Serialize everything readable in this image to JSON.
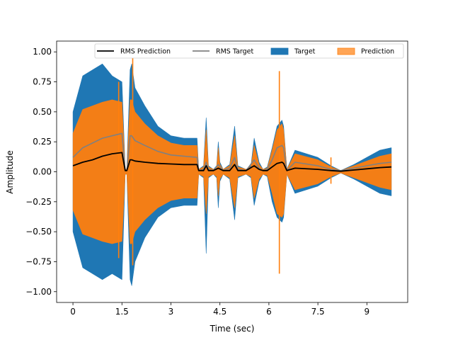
{
  "chart_data": {
    "type": "area",
    "title": "",
    "xlabel": "Time (sec)",
    "ylabel": "Amplitude",
    "xlim": [
      -0.5,
      10.25
    ],
    "ylim": [
      -1.09,
      1.09
    ],
    "x_ticks": [
      0,
      1.5,
      3,
      4.5,
      6,
      7.5,
      9
    ],
    "x_tick_labels": [
      "0",
      "1.5",
      "3",
      "4.5",
      "6",
      "7.5",
      "9"
    ],
    "y_ticks": [
      -1.0,
      -0.75,
      -0.5,
      -0.25,
      0.0,
      0.25,
      0.5,
      0.75,
      1.0
    ],
    "y_tick_labels": [
      "−1.00",
      "−0.75",
      "−0.50",
      "−0.25",
      "0.00",
      "0.25",
      "0.50",
      "0.75",
      "1.00"
    ],
    "legend": {
      "placement": "top-right",
      "entries": [
        {
          "label": "RMS Prediction",
          "kind": "line",
          "color": "#000000"
        },
        {
          "label": "RMS Target",
          "kind": "line",
          "color": "#808080"
        },
        {
          "label": "Target",
          "kind": "patch",
          "color": "#1f77b4"
        },
        {
          "label": "Prediction",
          "kind": "patch",
          "color": "#ff7f0e"
        }
      ]
    },
    "series": [
      {
        "name": "Target",
        "kind": "envelope",
        "color": "#1f77b4",
        "x": [
          0.0,
          0.3,
          0.6,
          0.9,
          1.2,
          1.5,
          1.6,
          1.65,
          1.75,
          1.8,
          1.9,
          2.2,
          2.6,
          3.0,
          3.4,
          3.8,
          3.85,
          4.0,
          4.08,
          4.15,
          4.3,
          4.4,
          4.45,
          4.5,
          4.6,
          4.8,
          4.95,
          5.05,
          5.3,
          5.45,
          5.55,
          5.7,
          5.82,
          5.95,
          6.1,
          6.25,
          6.4,
          6.45,
          6.55,
          6.8,
          7.5,
          7.9,
          8.2,
          8.6,
          9.0,
          9.4,
          9.75
        ],
        "upper": [
          0.5,
          0.8,
          0.85,
          0.9,
          0.8,
          0.75,
          0.02,
          0.02,
          0.85,
          0.9,
          0.7,
          0.55,
          0.38,
          0.3,
          0.28,
          0.28,
          0.02,
          0.05,
          0.45,
          0.05,
          0.02,
          0.05,
          0.25,
          0.08,
          0.02,
          0.06,
          0.38,
          0.05,
          0.02,
          0.05,
          0.28,
          0.08,
          0.02,
          0.04,
          0.2,
          0.38,
          0.43,
          0.38,
          0.02,
          0.18,
          0.12,
          0.05,
          0.01,
          0.06,
          0.12,
          0.18,
          0.2
        ],
        "lower": [
          -0.5,
          -0.8,
          -0.85,
          -0.9,
          -0.85,
          -0.9,
          -0.02,
          -0.02,
          -0.9,
          -0.95,
          -0.75,
          -0.55,
          -0.38,
          -0.3,
          -0.28,
          -0.28,
          -0.02,
          -0.05,
          -0.68,
          -0.05,
          -0.02,
          -0.05,
          -0.3,
          -0.08,
          -0.02,
          -0.06,
          -0.4,
          -0.05,
          -0.02,
          -0.05,
          -0.28,
          -0.08,
          -0.02,
          -0.04,
          -0.25,
          -0.38,
          -0.42,
          -0.38,
          -0.02,
          -0.18,
          -0.12,
          -0.05,
          -0.01,
          -0.06,
          -0.12,
          -0.18,
          -0.2
        ]
      },
      {
        "name": "Prediction",
        "kind": "envelope",
        "color": "#ff7f0e",
        "x": [
          0.0,
          0.3,
          0.6,
          0.9,
          1.2,
          1.5,
          1.6,
          1.65,
          1.75,
          1.8,
          1.9,
          2.2,
          2.6,
          3.0,
          3.4,
          3.8,
          3.85,
          4.0,
          4.08,
          4.15,
          4.3,
          4.4,
          4.45,
          4.5,
          4.6,
          4.8,
          4.95,
          5.05,
          5.3,
          5.45,
          5.55,
          5.7,
          5.82,
          5.95,
          6.1,
          6.25,
          6.4,
          6.45,
          6.55,
          6.8,
          7.5,
          7.9,
          8.2,
          8.6,
          9.0,
          9.4,
          9.75
        ],
        "upper": [
          0.32,
          0.52,
          0.55,
          0.58,
          0.6,
          0.58,
          0.02,
          0.02,
          0.6,
          0.6,
          0.5,
          0.4,
          0.3,
          0.24,
          0.22,
          0.22,
          0.02,
          0.04,
          0.35,
          0.04,
          0.02,
          0.04,
          0.2,
          0.06,
          0.02,
          0.05,
          0.3,
          0.04,
          0.02,
          0.04,
          0.22,
          0.06,
          0.02,
          0.03,
          0.18,
          0.35,
          0.4,
          0.35,
          0.02,
          0.15,
          0.1,
          0.04,
          0.01,
          0.05,
          0.09,
          0.13,
          0.15
        ],
        "lower": [
          -0.32,
          -0.52,
          -0.55,
          -0.58,
          -0.6,
          -0.58,
          -0.02,
          -0.02,
          -0.6,
          -0.6,
          -0.5,
          -0.4,
          -0.3,
          -0.24,
          -0.22,
          -0.22,
          -0.02,
          -0.04,
          -0.35,
          -0.04,
          -0.02,
          -0.04,
          -0.2,
          -0.06,
          -0.02,
          -0.05,
          -0.3,
          -0.04,
          -0.02,
          -0.04,
          -0.22,
          -0.06,
          -0.02,
          -0.03,
          -0.18,
          -0.35,
          -0.38,
          -0.35,
          -0.02,
          -0.15,
          -0.1,
          -0.04,
          -0.01,
          -0.05,
          -0.09,
          -0.13,
          -0.15
        ]
      },
      {
        "name": "Prediction spikes",
        "kind": "spikes",
        "color": "#ff7f0e",
        "points": [
          {
            "x": 1.4,
            "upper": 0.75,
            "lower": -0.72
          },
          {
            "x": 1.83,
            "upper": 0.95,
            "lower": -0.78
          },
          {
            "x": 6.32,
            "upper": 0.84,
            "lower": -0.85
          },
          {
            "x": 7.9,
            "upper": 0.12,
            "lower": -0.1
          }
        ]
      },
      {
        "name": "RMS Target",
        "kind": "line",
        "color": "#808080",
        "x": [
          0.0,
          0.3,
          0.6,
          0.9,
          1.2,
          1.5,
          1.6,
          1.65,
          1.75,
          1.8,
          1.9,
          2.2,
          2.6,
          3.0,
          3.4,
          3.8,
          3.85,
          4.0,
          4.08,
          4.15,
          4.3,
          4.45,
          4.6,
          4.8,
          4.95,
          5.05,
          5.3,
          5.55,
          5.7,
          5.82,
          5.95,
          6.1,
          6.25,
          6.4,
          6.45,
          6.55,
          6.8,
          7.5,
          7.9,
          8.2,
          8.6,
          9.0,
          9.4,
          9.75
        ],
        "values": [
          0.12,
          0.2,
          0.24,
          0.28,
          0.3,
          0.32,
          0.01,
          0.01,
          0.3,
          0.3,
          0.26,
          0.22,
          0.17,
          0.14,
          0.13,
          0.12,
          0.01,
          0.02,
          0.08,
          0.02,
          0.01,
          0.06,
          0.01,
          0.03,
          0.12,
          0.02,
          0.01,
          0.1,
          0.03,
          0.01,
          0.02,
          0.1,
          0.2,
          0.22,
          0.2,
          0.01,
          0.08,
          0.05,
          0.02,
          0.01,
          0.03,
          0.05,
          0.07,
          0.08
        ]
      },
      {
        "name": "RMS Prediction",
        "kind": "line",
        "color": "#000000",
        "x": [
          0.0,
          0.3,
          0.6,
          0.9,
          1.2,
          1.5,
          1.6,
          1.65,
          1.75,
          1.8,
          1.9,
          2.2,
          2.6,
          3.0,
          3.4,
          3.8,
          3.85,
          4.0,
          4.08,
          4.15,
          4.3,
          4.45,
          4.6,
          4.8,
          4.95,
          5.05,
          5.3,
          5.55,
          5.7,
          5.82,
          5.95,
          6.1,
          6.25,
          6.4,
          6.45,
          6.55,
          6.8,
          7.5,
          7.9,
          8.2,
          8.6,
          9.0,
          9.4,
          9.75
        ],
        "values": [
          0.05,
          0.08,
          0.1,
          0.13,
          0.15,
          0.16,
          0.01,
          0.01,
          0.1,
          0.1,
          0.09,
          0.08,
          0.07,
          0.065,
          0.06,
          0.06,
          0.01,
          0.01,
          0.05,
          0.01,
          0.01,
          0.03,
          0.01,
          0.01,
          0.06,
          0.01,
          0.01,
          0.05,
          0.02,
          0.01,
          0.01,
          0.04,
          0.07,
          0.08,
          0.07,
          0.01,
          0.03,
          0.02,
          0.01,
          0.005,
          0.015,
          0.025,
          0.035,
          0.04
        ]
      }
    ]
  }
}
